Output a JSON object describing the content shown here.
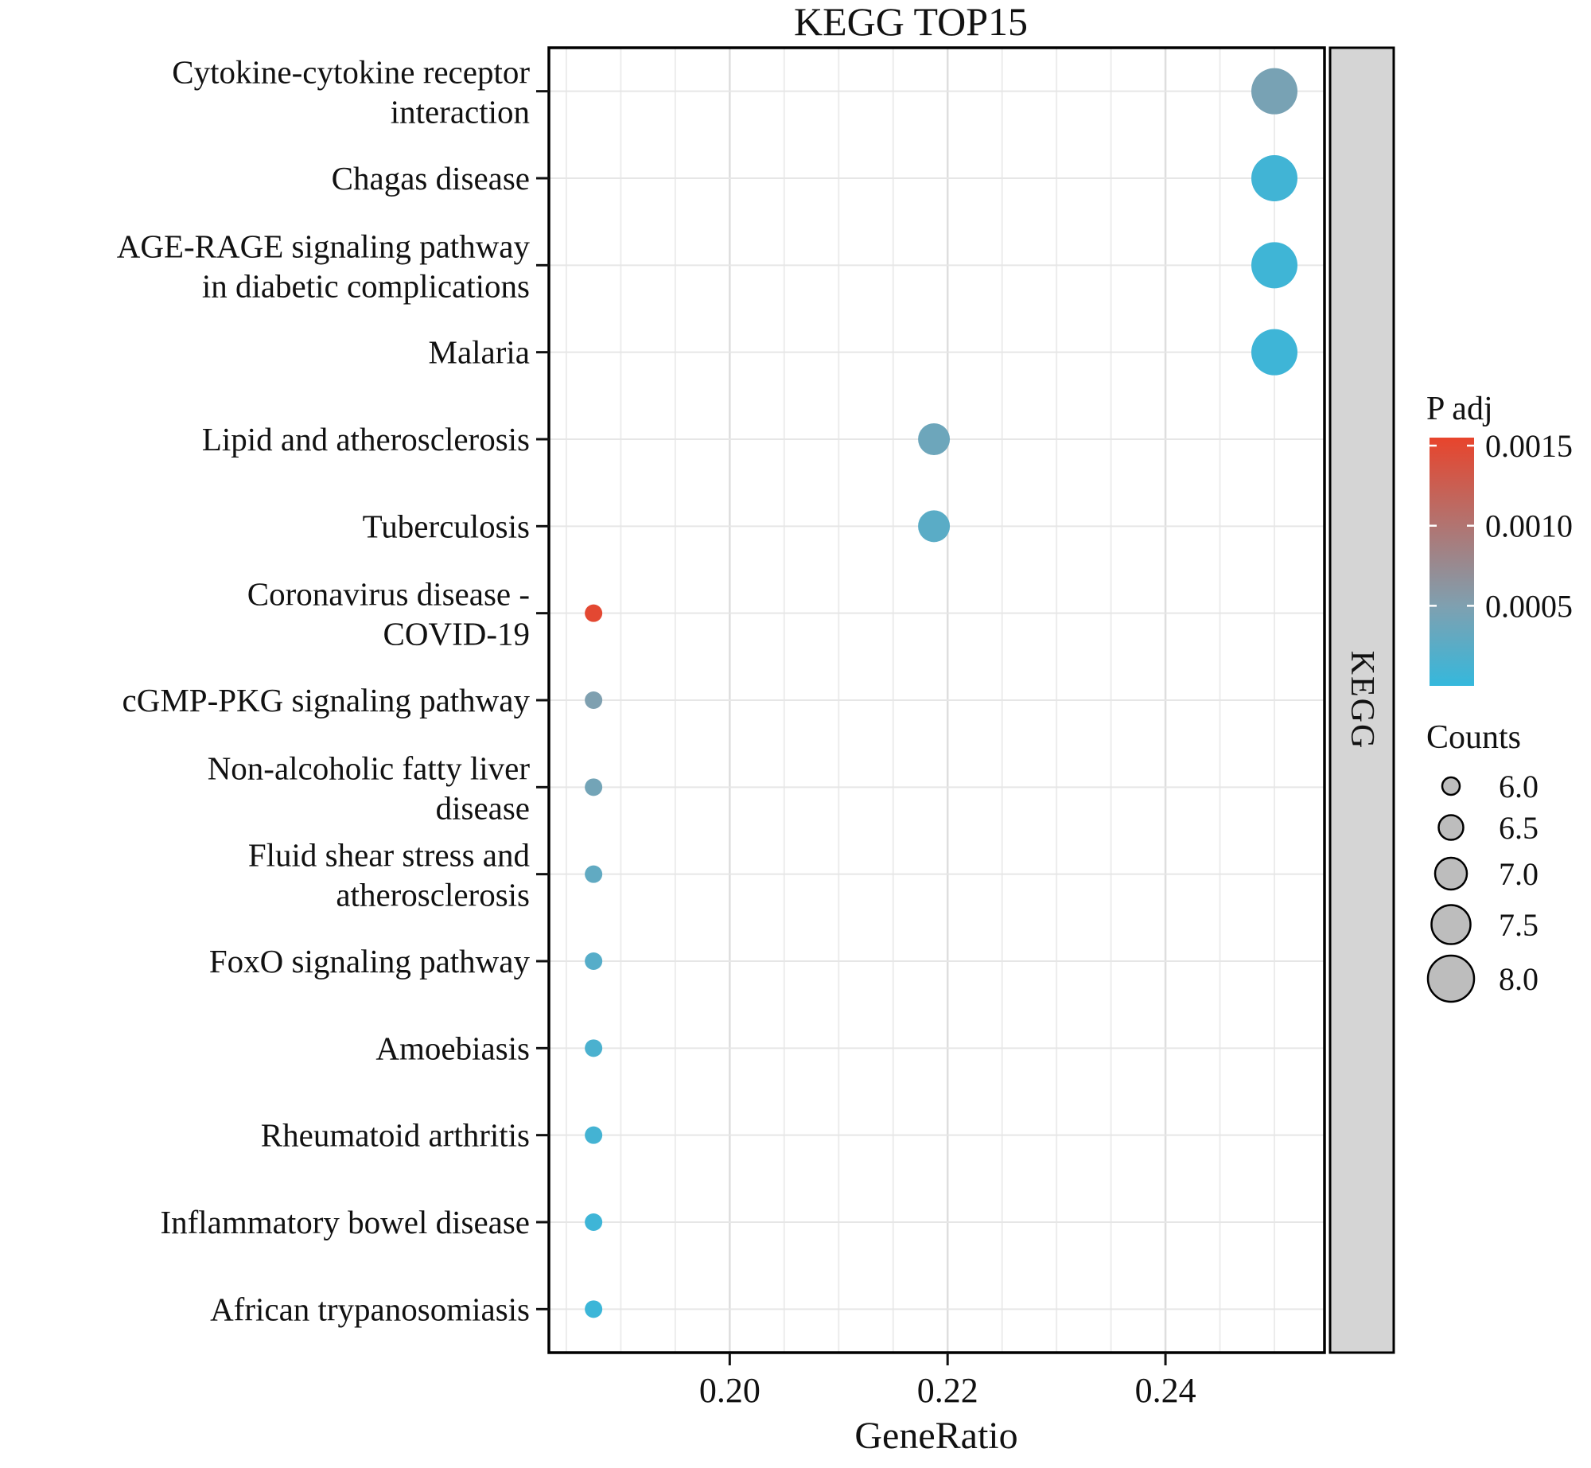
{
  "figure": {
    "background_color": "#ffffff"
  },
  "chart_data": {
    "type": "scatter",
    "subtype": "enrichment-dotplot",
    "title": "KEGG TOP15",
    "xlabel": "GeneRatio",
    "ylabel": "",
    "facet_label": "KEGG",
    "xlim": [
      0.1834,
      0.2546
    ],
    "x_ticks": [
      0.2,
      0.22,
      0.24
    ],
    "grid": true,
    "legend_position": "right",
    "color_scale": {
      "title": "P adj",
      "low_color": "#35b8dc",
      "mid_color": "#7fa0b0",
      "high_color": "#e8442c",
      "mid_value": 0.0005,
      "domain": [
        0,
        0.00155
      ],
      "ticks": [
        0.0015,
        0.001,
        0.0005
      ]
    },
    "size_scale": {
      "title": "Counts",
      "ticks": [
        6.0,
        6.5,
        7.0,
        7.5,
        8.0
      ]
    },
    "points": [
      {
        "pathway": "Cytokine-cytokine receptor interaction",
        "label_lines": [
          "Cytokine-cytokine receptor",
          "interaction"
        ],
        "gene_ratio": 0.25,
        "count": 8,
        "p_adj": 0.00045
      },
      {
        "pathway": "Chagas disease",
        "label_lines": [
          "Chagas disease"
        ],
        "gene_ratio": 0.25,
        "count": 8,
        "p_adj": 8e-05
      },
      {
        "pathway": "AGE-RAGE signaling pathway in diabetic complications",
        "label_lines": [
          "AGE-RAGE signaling pathway",
          "in diabetic complications"
        ],
        "gene_ratio": 0.25,
        "count": 8,
        "p_adj": 7e-05
      },
      {
        "pathway": "Malaria",
        "label_lines": [
          "Malaria"
        ],
        "gene_ratio": 0.25,
        "count": 8,
        "p_adj": 6e-05
      },
      {
        "pathway": "Lipid and atherosclerosis",
        "label_lines": [
          "Lipid and atherosclerosis"
        ],
        "gene_ratio": 0.21875,
        "count": 7,
        "p_adj": 0.00038
      },
      {
        "pathway": "Tuberculosis",
        "label_lines": [
          "Tuberculosis"
        ],
        "gene_ratio": 0.21875,
        "count": 7,
        "p_adj": 0.00025
      },
      {
        "pathway": "Coronavirus disease - COVID-19",
        "label_lines": [
          "Coronavirus disease -",
          "COVID-19"
        ],
        "gene_ratio": 0.1875,
        "count": 6,
        "p_adj": 0.0015
      },
      {
        "pathway": "cGMP-PKG signaling pathway",
        "label_lines": [
          "cGMP-PKG signaling pathway"
        ],
        "gene_ratio": 0.1875,
        "count": 6,
        "p_adj": 0.0005
      },
      {
        "pathway": "Non-alcoholic fatty liver disease",
        "label_lines": [
          "Non-alcoholic fatty liver",
          "disease"
        ],
        "gene_ratio": 0.1875,
        "count": 6,
        "p_adj": 0.00042
      },
      {
        "pathway": "Fluid shear stress and atherosclerosis",
        "label_lines": [
          "Fluid shear stress and",
          "atherosclerosis"
        ],
        "gene_ratio": 0.1875,
        "count": 6,
        "p_adj": 0.0003
      },
      {
        "pathway": "FoxO signaling pathway",
        "label_lines": [
          "FoxO signaling pathway"
        ],
        "gene_ratio": 0.1875,
        "count": 6,
        "p_adj": 0.00022
      },
      {
        "pathway": "Amoebiasis",
        "label_lines": [
          "Amoebiasis"
        ],
        "gene_ratio": 0.1875,
        "count": 6,
        "p_adj": 0.00015
      },
      {
        "pathway": "Rheumatoid arthritis",
        "label_lines": [
          "Rheumatoid arthritis"
        ],
        "gene_ratio": 0.1875,
        "count": 6,
        "p_adj": 0.0001
      },
      {
        "pathway": "Inflammatory bowel disease",
        "label_lines": [
          "Inflammatory bowel disease"
        ],
        "gene_ratio": 0.1875,
        "count": 6,
        "p_adj": 6e-05
      },
      {
        "pathway": "African trypanosomiasis",
        "label_lines": [
          "African trypanosomiasis"
        ],
        "gene_ratio": 0.1875,
        "count": 6,
        "p_adj": 5e-05
      }
    ]
  }
}
